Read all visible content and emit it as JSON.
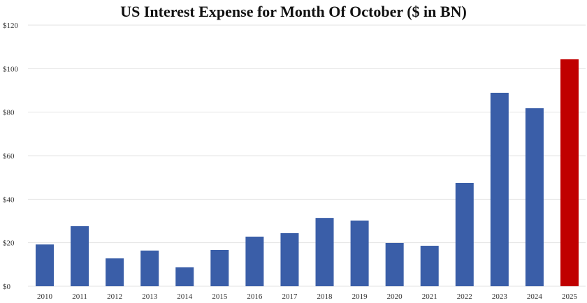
{
  "chart_data": {
    "type": "bar",
    "title": "US Interest Expense for Month Of October ($ in BN)",
    "xlabel": "",
    "ylabel": "",
    "categories": [
      "2010",
      "2011",
      "2012",
      "2013",
      "2014",
      "2015",
      "2016",
      "2017",
      "2018",
      "2019",
      "2020",
      "2021",
      "2022",
      "2023",
      "2024",
      "2025"
    ],
    "values": [
      19.2,
      27.6,
      12.8,
      16.4,
      8.7,
      16.7,
      22.8,
      24.4,
      31.4,
      30.2,
      19.9,
      18.6,
      47.5,
      88.9,
      81.8,
      104.3
    ],
    "ylim": [
      0,
      120
    ],
    "yticks": [
      0,
      20,
      40,
      60,
      80,
      100,
      120
    ],
    "ytick_labels": [
      "$0",
      "$20",
      "$40",
      "$60",
      "$80",
      "$100",
      "$120"
    ],
    "grid": true,
    "colors": {
      "default": "#3a5ea8",
      "highlight": "#c00000",
      "highlight_category": "2025",
      "grid": "#e3e3e3"
    }
  }
}
